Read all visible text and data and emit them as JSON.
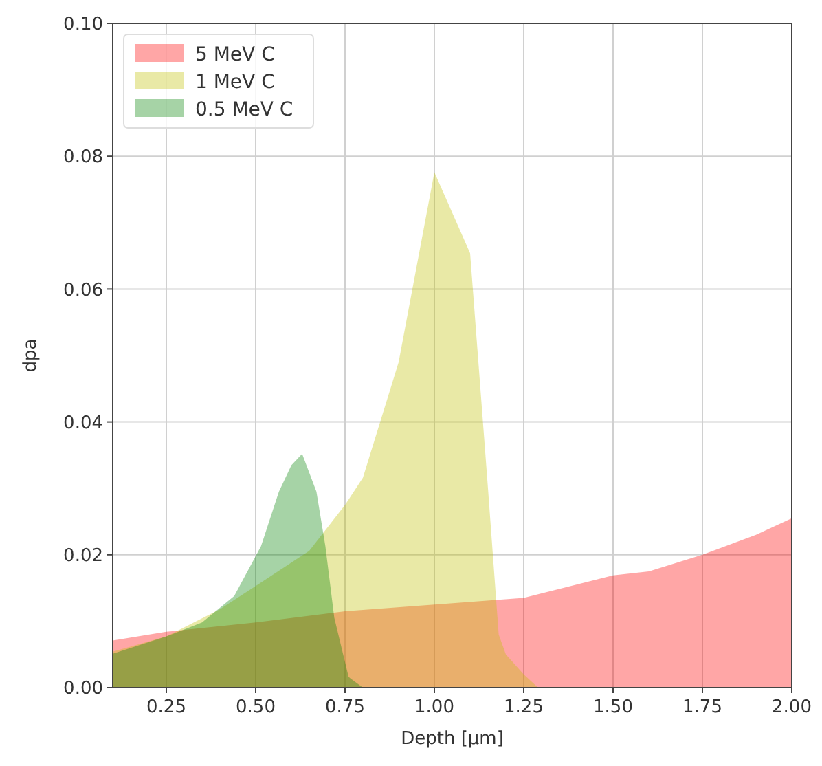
{
  "chart_data": {
    "type": "area",
    "xlabel": "Depth [µm]",
    "ylabel": "dpa",
    "xlim": [
      0.1,
      2.0
    ],
    "ylim": [
      0,
      0.1
    ],
    "xticks": [
      0.25,
      {
        "value": 0.5,
        "label": "0.50"
      },
      0.75,
      {
        "value": 1.0,
        "label": "1.00"
      },
      1.25,
      {
        "value": 1.5,
        "label": "1.50"
      },
      1.75,
      {
        "value": 2.0,
        "label": "2.00"
      }
    ],
    "yticks": [
      {
        "value": 0,
        "label": "0.00"
      },
      {
        "value": 0.02,
        "label": "0.02"
      },
      {
        "value": 0.04,
        "label": "0.04"
      },
      {
        "value": 0.06,
        "label": "0.06"
      },
      {
        "value": 0.08,
        "label": "0.08"
      },
      {
        "value": 0.1,
        "label": "0.10"
      }
    ],
    "grid": true,
    "legend": "top left",
    "series": [
      {
        "name": "5 MeV C",
        "color": "#ff0000",
        "x": [
          0.1,
          0.25,
          0.5,
          0.75,
          1.0,
          1.25,
          1.5,
          1.6,
          1.75,
          1.9,
          2.0
        ],
        "values": [
          0.0071,
          0.0084,
          0.0098,
          0.0115,
          0.0125,
          0.0135,
          0.0169,
          0.0175,
          0.02,
          0.023,
          0.0255
        ]
      },
      {
        "name": "1 MeV C",
        "color": "#bfbf00",
        "x": [
          0.1,
          0.25,
          0.4,
          0.5,
          0.65,
          0.75,
          0.8,
          0.9,
          1.0,
          1.1,
          1.15,
          1.18,
          1.2,
          1.25,
          1.29
        ],
        "values": [
          0.0054,
          0.0077,
          0.0118,
          0.0153,
          0.0206,
          0.0275,
          0.0316,
          0.049,
          0.0776,
          0.0654,
          0.03,
          0.008,
          0.005,
          0.002,
          0
        ]
      },
      {
        "name": "0.5 MeV C",
        "color": "#008000",
        "x": [
          0.1,
          0.25,
          0.35,
          0.44,
          0.515,
          0.565,
          0.6,
          0.63,
          0.67,
          0.695,
          0.72,
          0.76,
          0.8
        ],
        "values": [
          0.0051,
          0.0077,
          0.0098,
          0.0138,
          0.0213,
          0.0295,
          0.0335,
          0.0352,
          0.0295,
          0.0213,
          0.0105,
          0.0016,
          0
        ]
      }
    ]
  }
}
